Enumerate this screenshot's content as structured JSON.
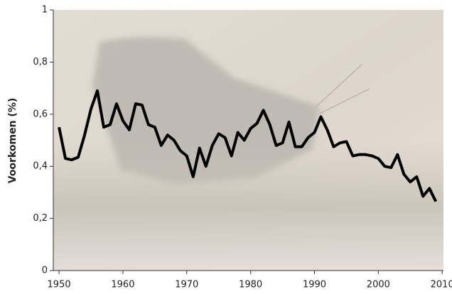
{
  "chart_data": {
    "type": "line",
    "y_label": "Voorkomen (%)",
    "x": [
      1950,
      1951,
      1952,
      1953,
      1954,
      1955,
      1956,
      1957,
      1958,
      1959,
      1960,
      1961,
      1962,
      1963,
      1964,
      1965,
      1966,
      1967,
      1968,
      1969,
      1970,
      1971,
      1972,
      1973,
      1974,
      1975,
      1976,
      1977,
      1978,
      1979,
      1980,
      1981,
      1982,
      1983,
      1984,
      1985,
      1986,
      1987,
      1988,
      1989,
      1990,
      1991,
      1992,
      1993,
      1994,
      1995,
      1996,
      1997,
      1998,
      1999,
      2000,
      2001,
      2002,
      2003,
      2004,
      2005,
      2006,
      2007,
      2008,
      2009
    ],
    "series": [
      {
        "color": "#000000",
        "values": [
          0.55,
          0.43,
          0.425,
          0.435,
          0.52,
          0.62,
          0.69,
          0.55,
          0.56,
          0.64,
          0.575,
          0.54,
          0.64,
          0.635,
          0.56,
          0.55,
          0.48,
          0.52,
          0.5,
          0.46,
          0.44,
          0.36,
          0.47,
          0.4,
          0.48,
          0.525,
          0.51,
          0.44,
          0.53,
          0.5,
          0.545,
          0.565,
          0.615,
          0.56,
          0.48,
          0.49,
          0.57,
          0.475,
          0.475,
          0.51,
          0.53,
          0.59,
          0.54,
          0.475,
          0.49,
          0.495,
          0.44,
          0.445,
          0.445,
          0.44,
          0.43,
          0.4,
          0.395,
          0.445,
          0.37,
          0.34,
          0.36,
          0.285,
          0.315,
          0.265
        ]
      }
    ],
    "xlim": [
      1949.1,
      2010.2
    ],
    "xticks": [
      1950,
      1960,
      1970,
      1980,
      1990,
      2000,
      2010
    ],
    "ylim": [
      0,
      1
    ],
    "yticks": [
      0,
      {
        "value": 0.2,
        "label": "0,2"
      },
      {
        "value": 0.4,
        "label": "0,4"
      },
      {
        "value": 0.6,
        "label": "0,6"
      },
      {
        "value": 0.8,
        "label": "0,8"
      },
      1
    ]
  }
}
